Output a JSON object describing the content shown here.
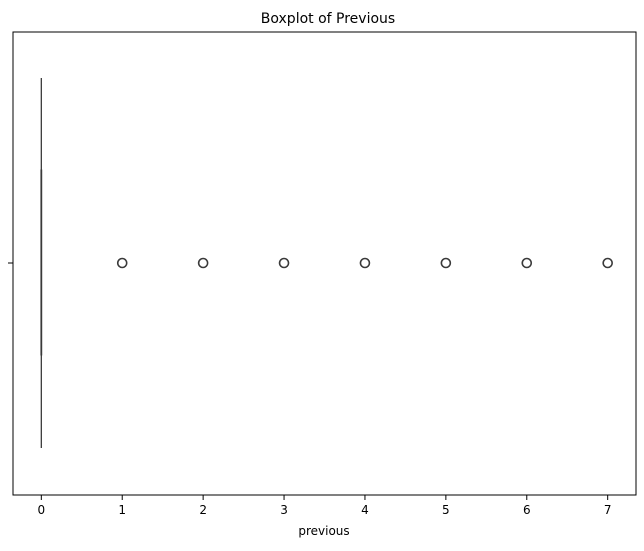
{
  "chart_data": {
    "type": "boxplot",
    "orientation": "horizontal",
    "title": "Boxplot of Previous",
    "xlabel": "previous",
    "ylabel": "",
    "xlim": [
      -0.35,
      7.35
    ],
    "xticks": [
      0,
      1,
      2,
      3,
      4,
      5,
      6,
      7
    ],
    "yticks": [
      ""
    ],
    "grid": false,
    "box": {
      "min": 0,
      "q1": 0,
      "median": 0,
      "q3": 0,
      "max": 0
    },
    "outliers": [
      1,
      2,
      3,
      4,
      5,
      6,
      7
    ],
    "colors": {
      "line": "#3a3a3a",
      "box_fill": "#1f77b4",
      "outlier_stroke": "#3a3a3a",
      "axis": "#000000"
    }
  }
}
